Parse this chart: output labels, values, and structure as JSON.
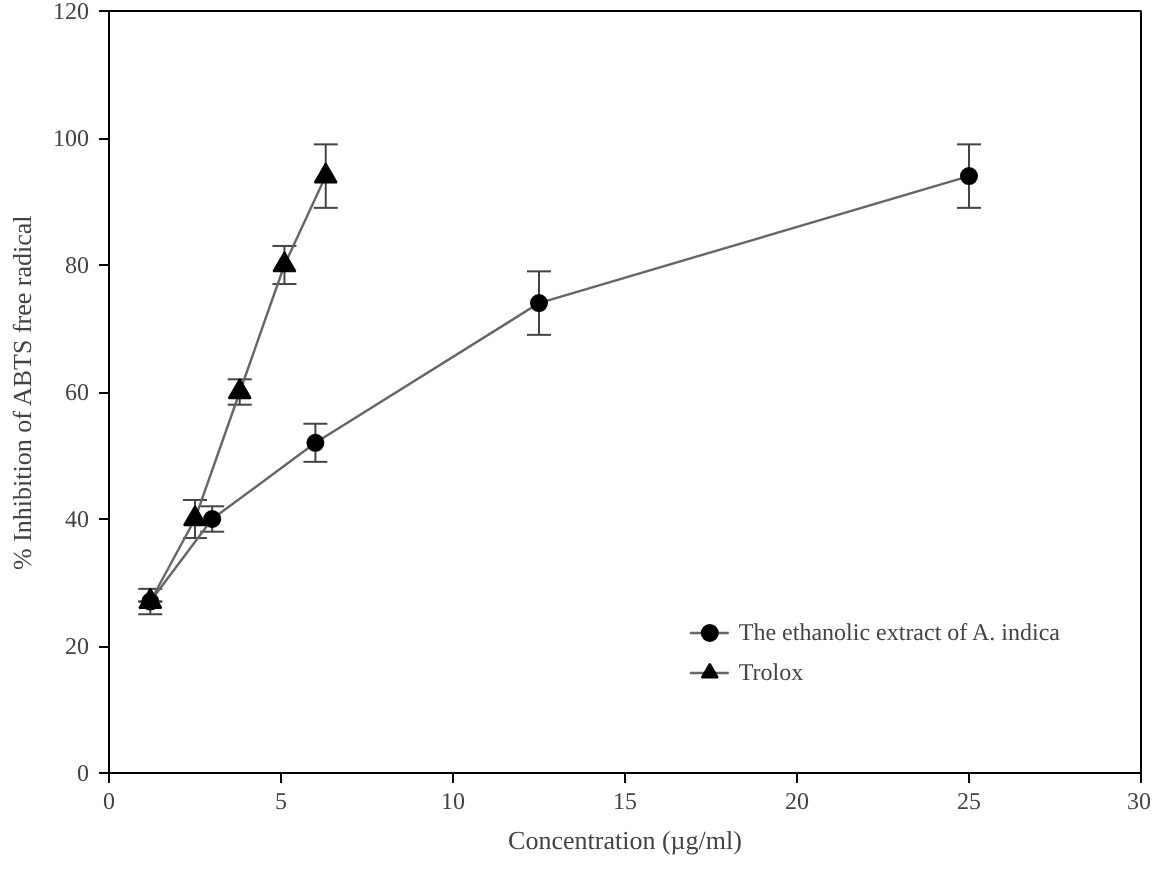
{
  "chart_data": {
    "type": "line",
    "xlabel": "Concentration (µg/ml)",
    "ylabel": "% Inhibition of ABTS free radical",
    "xlim": [
      0,
      30
    ],
    "xticks": [
      0,
      5,
      10,
      15,
      20,
      25,
      30
    ],
    "ylim": [
      0,
      120
    ],
    "yticks": [
      0,
      20,
      40,
      60,
      80,
      100,
      120
    ],
    "grid": false,
    "legend": "bottom right",
    "series": [
      {
        "name": "The ethanolic extract of A. indica",
        "color": "#000000",
        "marker": "circle",
        "x": [
          1.2,
          3.0,
          6.0,
          12.5,
          25
        ],
        "values": [
          27,
          40,
          52,
          74,
          94
        ],
        "errors": [
          null,
          2,
          3,
          5,
          5
        ]
      },
      {
        "name": "Trolox",
        "color": "#000000",
        "marker": "triangle",
        "x": [
          1.2,
          2.5,
          3.8,
          5.1,
          6.3
        ],
        "values": [
          27,
          40,
          60,
          80,
          94
        ],
        "errors": [
          2,
          3,
          2,
          3,
          5
        ]
      }
    ]
  }
}
